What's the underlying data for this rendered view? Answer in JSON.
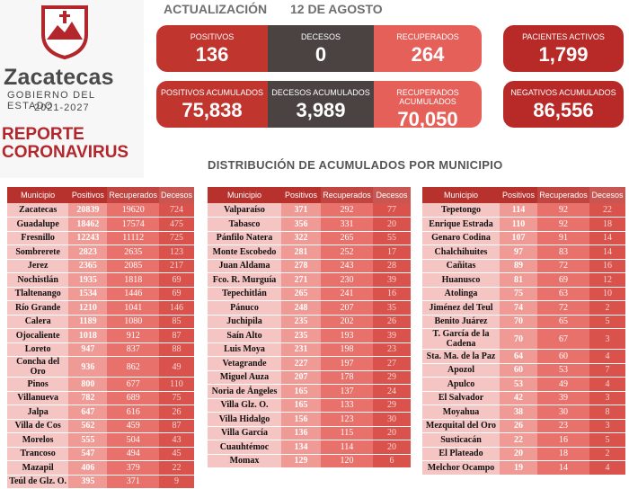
{
  "logo": {
    "name": "Zacatecas",
    "subtitle": "GOBIERNO DEL ESTADO",
    "years": "2021-2027"
  },
  "report_title_line1": "REPORTE",
  "report_title_line2": "CORONAVIRUS",
  "header": {
    "label": "ACTUALIZACIÓN",
    "date": "12 DE AGOSTO"
  },
  "cards": {
    "positivos": {
      "label": "POSITIVOS",
      "value": "136"
    },
    "decesos": {
      "label": "DECESOS",
      "value": "0"
    },
    "recuperados": {
      "label": "RECUPERADOS",
      "value": "264"
    },
    "activos": {
      "label": "PACIENTES ACTIVOS",
      "value": "1,799"
    },
    "positivos_acum": {
      "label": "POSITIVOS ACUMULADOS",
      "value": "75,838"
    },
    "decesos_acum": {
      "label": "DECESOS ACUMULADOS",
      "value": "3,989"
    },
    "recuperados_acum": {
      "label": "RECUPERADOS ACUMULADOS",
      "value": "70,050"
    },
    "negativos_acum": {
      "label": "NEGATIVOS ACUMULADOS",
      "value": "86,556"
    }
  },
  "section_title": "DISTRIBUCIÓN DE ACUMULADOS POR MUNICIPIO",
  "colors": {
    "primary_red": "#c1352f",
    "dark": "#4a4342",
    "pink": "#e6605a"
  },
  "columns": [
    "Municipio",
    "Positivos",
    "Recuperados",
    "Decesos"
  ],
  "tables": [
    [
      [
        "Zacatecas",
        "20839",
        "19620",
        "724"
      ],
      [
        "Guadalupe",
        "18462",
        "17574",
        "475"
      ],
      [
        "Fresnillo",
        "12243",
        "11112",
        "725"
      ],
      [
        "Sombrerete",
        "2823",
        "2635",
        "123"
      ],
      [
        "Jerez",
        "2365",
        "2085",
        "217"
      ],
      [
        "Nochistlán",
        "1935",
        "1818",
        "69"
      ],
      [
        "Tlaltenango",
        "1534",
        "1446",
        "69"
      ],
      [
        "Río Grande",
        "1210",
        "1041",
        "146"
      ],
      [
        "Calera",
        "1189",
        "1080",
        "85"
      ],
      [
        "Ojocaliente",
        "1018",
        "912",
        "87"
      ],
      [
        "Loreto",
        "947",
        "837",
        "88"
      ],
      [
        "Concha del Oro",
        "936",
        "862",
        "49"
      ],
      [
        "Pinos",
        "800",
        "677",
        "110"
      ],
      [
        "Villanueva",
        "782",
        "689",
        "75"
      ],
      [
        "Jalpa",
        "647",
        "616",
        "26"
      ],
      [
        "Villa de Cos",
        "562",
        "459",
        "87"
      ],
      [
        "Morelos",
        "555",
        "504",
        "43"
      ],
      [
        "Trancoso",
        "547",
        "494",
        "45"
      ],
      [
        "Mazapil",
        "406",
        "379",
        "22"
      ],
      [
        "Teúl de Glz. O.",
        "395",
        "371",
        "9"
      ]
    ],
    [
      [
        "Valparaíso",
        "371",
        "292",
        "77"
      ],
      [
        "Tabasco",
        "356",
        "331",
        "20"
      ],
      [
        "Pánfilo Natera",
        "322",
        "265",
        "55"
      ],
      [
        "Monte Escobedo",
        "281",
        "252",
        "17"
      ],
      [
        "Juan Aldama",
        "278",
        "243",
        "28"
      ],
      [
        "Fco. R. Murguía",
        "271",
        "230",
        "39"
      ],
      [
        "Tepechitlán",
        "265",
        "241",
        "16"
      ],
      [
        "Pánuco",
        "248",
        "207",
        "35"
      ],
      [
        "Juchipila",
        "235",
        "202",
        "26"
      ],
      [
        "Saín Alto",
        "235",
        "193",
        "39"
      ],
      [
        "Luis Moya",
        "231",
        "198",
        "23"
      ],
      [
        "Vetagrande",
        "227",
        "197",
        "27"
      ],
      [
        "Miguel Auza",
        "207",
        "178",
        "29"
      ],
      [
        "Noria de Ángeles",
        "165",
        "137",
        "24"
      ],
      [
        "Villa Glz. O.",
        "165",
        "133",
        "29"
      ],
      [
        "Villa Hidalgo",
        "156",
        "123",
        "30"
      ],
      [
        "Villa García",
        "136",
        "115",
        "20"
      ],
      [
        "Cuauhtémoc",
        "134",
        "114",
        "20"
      ],
      [
        "Momax",
        "129",
        "120",
        "6"
      ]
    ],
    [
      [
        "Tepetongo",
        "114",
        "92",
        "22"
      ],
      [
        "Enrique Estrada",
        "110",
        "92",
        "18"
      ],
      [
        "Genaro Codina",
        "107",
        "91",
        "14"
      ],
      [
        "Chalchihuites",
        "97",
        "83",
        "14"
      ],
      [
        "Cañitas",
        "89",
        "72",
        "16"
      ],
      [
        "Huanusco",
        "81",
        "69",
        "12"
      ],
      [
        "Atolinga",
        "75",
        "63",
        "10"
      ],
      [
        "Jiménez del Teul",
        "74",
        "72",
        "2"
      ],
      [
        "Benito Juárez",
        "70",
        "65",
        "5"
      ],
      [
        "T. García de la Cadena",
        "70",
        "67",
        "3"
      ],
      [
        "Sta. Ma. de la Paz",
        "64",
        "60",
        "4"
      ],
      [
        "Apozol",
        "60",
        "53",
        "7"
      ],
      [
        "Apulco",
        "53",
        "49",
        "4"
      ],
      [
        "El Salvador",
        "42",
        "39",
        "3"
      ],
      [
        "Moyahua",
        "38",
        "30",
        "8"
      ],
      [
        "Mezquital del Oro",
        "26",
        "23",
        "3"
      ],
      [
        "Susticacán",
        "22",
        "16",
        "5"
      ],
      [
        "El Plateado",
        "20",
        "18",
        "2"
      ],
      [
        "Melchor Ocampo",
        "19",
        "14",
        "4"
      ]
    ]
  ]
}
